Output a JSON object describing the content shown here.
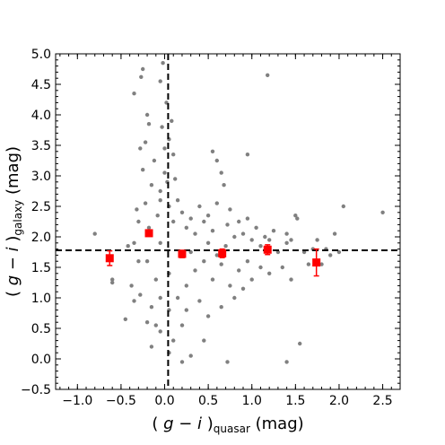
{
  "chart_data": {
    "type": "scatter",
    "xlabel": {
      "open": "( ",
      "var": "g − i",
      "close": " )",
      "sub": "quasar",
      "unit": " (mag)"
    },
    "ylabel": {
      "open": "( ",
      "var": "g − i",
      "close": " )",
      "sub": "galaxy",
      "unit": " (mag)"
    },
    "xlim": [
      -1.25,
      2.7
    ],
    "ylim": [
      -0.5,
      5.0
    ],
    "x_ticks": [
      -1.0,
      -0.5,
      0.0,
      0.5,
      1.0,
      1.5,
      2.0,
      2.5
    ],
    "x_tick_labels": [
      "−1.0",
      "−0.5",
      "0.0",
      "0.5",
      "1.0",
      "1.5",
      "2.0",
      "2.5"
    ],
    "y_ticks": [
      -0.5,
      0.0,
      0.5,
      1.0,
      1.5,
      2.0,
      2.5,
      3.0,
      3.5,
      4.0,
      4.5,
      5.0
    ],
    "y_tick_labels": [
      "−0.5",
      "0.0",
      "0.5",
      "1.0",
      "1.5",
      "2.0",
      "2.5",
      "3.0",
      "3.5",
      "4.0",
      "4.5",
      "5.0"
    ],
    "minor_step": 0.1,
    "grid": false,
    "reference_lines": {
      "vertical_x": 0.04,
      "horizontal_y": 1.78,
      "style": "dashed"
    },
    "series": [
      {
        "kind": "scatter",
        "color": "#808080",
        "points": [
          [
            -0.8,
            2.05
          ],
          [
            -0.6,
            1.25
          ],
          [
            -0.6,
            1.3
          ],
          [
            -0.45,
            0.65
          ],
          [
            -0.42,
            1.85
          ],
          [
            -0.38,
            1.2
          ],
          [
            -0.35,
            1.9
          ],
          [
            -0.35,
            0.95
          ],
          [
            -0.32,
            2.45
          ],
          [
            -0.3,
            1.6
          ],
          [
            -0.28,
            1.05
          ],
          [
            -0.25,
            4.75
          ],
          [
            -0.27,
            4.62
          ],
          [
            -0.35,
            4.35
          ],
          [
            -0.2,
            4.0
          ],
          [
            -0.22,
            3.55
          ],
          [
            -0.18,
            3.85
          ],
          [
            -0.28,
            3.45
          ],
          [
            -0.12,
            3.25
          ],
          [
            -0.25,
            3.1
          ],
          [
            -0.15,
            2.85
          ],
          [
            -0.05,
            2.75
          ],
          [
            -0.3,
            2.25
          ],
          [
            -0.22,
            2.55
          ],
          [
            -0.08,
            2.35
          ],
          [
            -0.18,
            2.15
          ],
          [
            -0.05,
            2.6
          ],
          [
            0.0,
            3.45
          ],
          [
            -0.03,
            3.8
          ],
          [
            -0.02,
            4.85
          ],
          [
            -0.05,
            4.55
          ],
          [
            0.02,
            4.2
          ],
          [
            0.05,
            3.6
          ],
          [
            0.0,
            3.05
          ],
          [
            0.03,
            2.9
          ],
          [
            0.08,
            3.9
          ],
          [
            0.1,
            3.35
          ],
          [
            0.12,
            2.95
          ],
          [
            0.05,
            2.5
          ],
          [
            0.1,
            2.25
          ],
          [
            0.15,
            2.6
          ],
          [
            0.2,
            2.4
          ],
          [
            0.25,
            2.15
          ],
          [
            0.3,
            2.3
          ],
          [
            0.35,
            2.05
          ],
          [
            0.4,
            2.5
          ],
          [
            0.45,
            2.25
          ],
          [
            0.5,
            2.35
          ],
          [
            0.55,
            2.1
          ],
          [
            0.6,
            2.55
          ],
          [
            0.6,
            3.25
          ],
          [
            0.65,
            3.05
          ],
          [
            0.55,
            3.4
          ],
          [
            0.68,
            2.85
          ],
          [
            0.72,
            2.2
          ],
          [
            0.75,
            2.45
          ],
          [
            0.8,
            2.0
          ],
          [
            0.85,
            2.25
          ],
          [
            0.9,
            2.05
          ],
          [
            0.95,
            2.3
          ],
          [
            1.0,
            1.95
          ],
          [
            1.05,
            2.15
          ],
          [
            1.1,
            1.85
          ],
          [
            1.15,
            2.0
          ],
          [
            1.2,
            1.95
          ],
          [
            1.25,
            2.1
          ],
          [
            1.3,
            1.75
          ],
          [
            1.35,
            1.5
          ],
          [
            1.4,
            1.9
          ],
          [
            1.45,
            1.95
          ],
          [
            1.5,
            2.35
          ],
          [
            1.52,
            2.3
          ],
          [
            1.45,
            1.3
          ],
          [
            1.4,
            2.05
          ],
          [
            1.6,
            1.75
          ],
          [
            1.65,
            1.55
          ],
          [
            1.7,
            1.8
          ],
          [
            1.75,
            1.95
          ],
          [
            1.8,
            1.55
          ],
          [
            1.85,
            1.8
          ],
          [
            1.9,
            1.7
          ],
          [
            2.0,
            1.75
          ],
          [
            2.05,
            2.5
          ],
          [
            1.95,
            2.05
          ],
          [
            2.5,
            2.4
          ],
          [
            0.95,
            3.35
          ],
          [
            1.18,
            4.65
          ],
          [
            1.55,
            0.25
          ],
          [
            1.4,
            -0.05
          ],
          [
            0.2,
            -0.05
          ],
          [
            0.3,
            0.05
          ],
          [
            0.72,
            -0.05
          ],
          [
            0.45,
            0.3
          ],
          [
            0.5,
            0.7
          ],
          [
            0.4,
            0.95
          ],
          [
            0.65,
            0.85
          ],
          [
            0.8,
            1.0
          ],
          [
            0.9,
            1.15
          ],
          [
            1.0,
            1.3
          ],
          [
            1.1,
            1.5
          ],
          [
            1.2,
            1.4
          ],
          [
            0.2,
            0.55
          ],
          [
            0.25,
            0.8
          ],
          [
            0.1,
            0.3
          ],
          [
            0.05,
            0.1
          ],
          [
            -0.05,
            0.45
          ],
          [
            -0.15,
            0.2
          ],
          [
            -0.1,
            0.55
          ],
          [
            -0.2,
            0.6
          ],
          [
            -0.1,
            1.3
          ],
          [
            0.15,
            1.0
          ],
          [
            0.25,
            1.2
          ],
          [
            0.35,
            1.45
          ],
          [
            0.45,
            1.6
          ],
          [
            0.55,
            1.3
          ],
          [
            0.65,
            1.55
          ],
          [
            0.75,
            1.2
          ],
          [
            0.85,
            1.45
          ],
          [
            0.95,
            1.6
          ],
          [
            -0.05,
            1.0
          ],
          [
            0.05,
            0.8
          ],
          [
            -0.15,
            0.85
          ],
          [
            -0.05,
            1.9
          ],
          [
            0.05,
            1.4
          ],
          [
            -0.2,
            1.6
          ],
          [
            0.3,
            1.75
          ],
          [
            0.5,
            1.9
          ],
          [
            0.6,
            1.7
          ],
          [
            0.7,
            1.85
          ]
        ]
      },
      {
        "kind": "errorbar",
        "color": "#ff0000",
        "points": [
          {
            "x": -0.63,
            "y": 1.65,
            "yerr": 0.12
          },
          {
            "x": -0.18,
            "y": 2.06,
            "yerr": 0.05
          },
          {
            "x": 0.2,
            "y": 1.72,
            "yerr": 0.06
          },
          {
            "x": 0.66,
            "y": 1.73,
            "yerr": 0.07
          },
          {
            "x": 1.18,
            "y": 1.79,
            "yerr": 0.08
          },
          {
            "x": 1.74,
            "y": 1.58,
            "yerr": 0.22
          }
        ]
      }
    ]
  }
}
